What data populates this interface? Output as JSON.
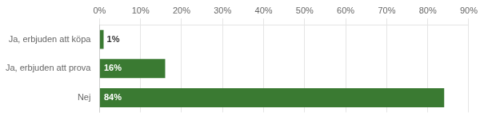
{
  "chart_data": {
    "type": "bar",
    "orientation": "horizontal",
    "categories": [
      "Ja, erbjuden att köpa",
      "Ja, erbjuden att prova",
      "Nej"
    ],
    "values": [
      1,
      16,
      84
    ],
    "value_labels": [
      "1%",
      "16%",
      "84%"
    ],
    "data_labels": true,
    "colors": [
      "#3a7a32",
      "#3a7a32",
      "#3a7a32"
    ],
    "xlim": [
      0,
      90
    ],
    "xticks": [
      {
        "value": 0,
        "label": "0%"
      },
      {
        "value": 10,
        "label": "10%"
      },
      {
        "value": 20,
        "label": "20%"
      },
      {
        "value": 30,
        "label": "30%"
      },
      {
        "value": 40,
        "label": "40%"
      },
      {
        "value": 50,
        "label": "50%"
      },
      {
        "value": 60,
        "label": "60%"
      },
      {
        "value": 70,
        "label": "70%"
      },
      {
        "value": 80,
        "label": "80%"
      },
      {
        "value": 90,
        "label": "90%"
      }
    ],
    "grid": true
  }
}
